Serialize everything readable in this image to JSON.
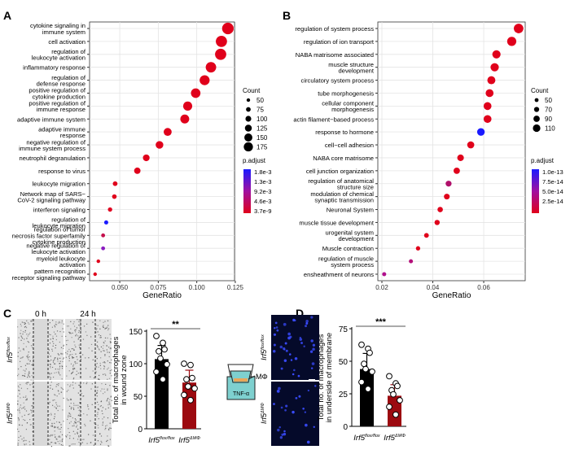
{
  "panel_labels": {
    "a": "A",
    "b": "B",
    "c": "C",
    "d": "D"
  },
  "chart_data": [
    {
      "type": "scatter",
      "panel": "A",
      "xlabel": "GeneRatio",
      "xlim": [
        0.0304,
        0.1245
      ],
      "xticks": [
        "0.050",
        "0.075",
        "0.100",
        "0.125"
      ],
      "xtick_values": [
        0.05,
        0.075,
        0.1,
        0.125
      ],
      "grid": true,
      "terms": [
        "cytokine signaling in\nimmune system",
        "cell activation",
        "regulation of\nleukocyte activation",
        "inflammatory response",
        "regulation of\ndefense response",
        "positive regulation of\ncytokine production",
        "positive regulation of\nimmune response",
        "adaptive immune system",
        "adaptive immune\nresponse",
        "negative regulation of\nimmune system process",
        "neutrophil degranulation",
        "response to virus",
        "leukocyte migration",
        "Network map of SARS−\nCoV-2 signaling pathway",
        "interferon signaling",
        "regulation of\nleukocyte migration",
        "regulation of tumor\nnecrosis factor superfamily\ncytokine production",
        "negative regulation of\nleukocyte activation",
        "myeloid leukocyte\nactivation",
        "pattern recognition\nreceptor signaling pathway"
      ],
      "gene_ratio": [
        0.1202,
        0.116,
        0.1155,
        0.1092,
        0.1051,
        0.0993,
        0.0941,
        0.0922,
        0.0811,
        0.0758,
        0.0672,
        0.0614,
        0.047,
        0.0465,
        0.0437,
        0.0412,
        0.0392,
        0.0392,
        0.0361,
        0.034
      ],
      "count": [
        178,
        172,
        172,
        160,
        152,
        145,
        138,
        135,
        120,
        115,
        100,
        95,
        68,
        66,
        63,
        58,
        55,
        55,
        50,
        46
      ],
      "colors": [
        "#e0001b",
        "#e0001b",
        "#e0001b",
        "#e0001b",
        "#e0001b",
        "#e0001b",
        "#e0001b",
        "#e0001b",
        "#e0001b",
        "#e0001b",
        "#e0001b",
        "#e0001b",
        "#e0001b",
        "#e0001b",
        "#e00220",
        "#1a1aff",
        "#c4104c",
        "#8a1cc0",
        "#e0001b",
        "#e0001b"
      ],
      "size_legend": {
        "title": "Count",
        "values": [
          50,
          75,
          100,
          125,
          150,
          175
        ]
      },
      "color_legend": {
        "title": "p.adjust",
        "labels": [
          "1.8e-3",
          "1.3e-3",
          "9.2e-3",
          "4.6e-3",
          "3.7e-9"
        ],
        "low": "#e0001b",
        "high": "#1a1aff"
      }
    },
    {
      "type": "scatter",
      "panel": "B",
      "xlabel": "GeneRatio",
      "xlim": [
        0.0184,
        0.0763
      ],
      "xticks": [
        "0.02",
        "0.04",
        "0.06"
      ],
      "xtick_values": [
        0.02,
        0.04,
        0.06
      ],
      "grid": true,
      "terms": [
        "regulation of system process",
        "regulation of ion transport",
        "NABA matrisome associated",
        "muscle structure\ndevelopment",
        "circulatory system process",
        "tube morphogenesis",
        "cellular component\nmorphogenesis",
        "actin filament−based process",
        "response to hormone",
        "cell−cell adhesion",
        "NABA core matrisome",
        "cell junction organization",
        "regulation of anatomical\nstructure size",
        "modulation of chemical\nsynaptic transmission",
        "Neuronal System",
        "muscle tissue development",
        "urogenital system\ndevelopment",
        "Muscle contraction",
        "regulation of muscle\nsystem process",
        "ensheathment of neurons"
      ],
      "gene_ratio": [
        0.0737,
        0.071,
        0.065,
        0.0643,
        0.063,
        0.0623,
        0.0615,
        0.0615,
        0.0589,
        0.0549,
        0.0509,
        0.0494,
        0.0462,
        0.0455,
        0.0429,
        0.0417,
        0.0375,
        0.0342,
        0.0314,
        0.0209
      ],
      "count": [
        115,
        110,
        100,
        100,
        97,
        95,
        95,
        95,
        92,
        86,
        80,
        77,
        72,
        70,
        66,
        64,
        58,
        53,
        48,
        30
      ],
      "colors": [
        "#e0001b",
        "#e0001b",
        "#e0001b",
        "#e0001b",
        "#e0001b",
        "#e0001b",
        "#e0001b",
        "#e0001b",
        "#1a1aff",
        "#e0001b",
        "#e0001b",
        "#e0001b",
        "#b0106a",
        "#e0001b",
        "#e0001b",
        "#e0001b",
        "#e0001b",
        "#e0001b",
        "#b4107a",
        "#b0108c"
      ],
      "size_legend": {
        "title": "Count",
        "values": [
          50,
          70,
          90,
          110
        ]
      },
      "color_legend": {
        "title": "p.adjust",
        "labels": [
          "1.0e-13",
          "7.5e-14",
          "5.0e-14",
          "2.5e-14"
        ],
        "low": "#e0001b",
        "high": "#1a1aff"
      }
    },
    {
      "type": "bar",
      "panel": "C",
      "ylabel": "Total no. of macrophages\nin wound zone",
      "ylim": [
        0,
        150
      ],
      "yticks": [
        0,
        50,
        100,
        150
      ],
      "categories": [
        "Irf5",
        "Irf5"
      ],
      "category_sup": [
        "flox/flox",
        "ΔMΦ"
      ],
      "values": [
        107,
        71
      ],
      "error_upper": [
        128,
        90
      ],
      "bar_colors": [
        "#000000",
        "#9c0a10"
      ],
      "points": [
        [
          142.5,
          132,
          122,
          119,
          108,
          99,
          87.5,
          76
        ],
        [
          100,
          98,
          78,
          76,
          65,
          62,
          52,
          44
        ]
      ],
      "significance": "**"
    },
    {
      "type": "bar",
      "panel": "D",
      "ylabel": "Total no. of macrophages\nin underside of membrane",
      "ylim": [
        0,
        75
      ],
      "yticks": [
        0,
        25,
        50,
        75
      ],
      "categories": [
        "Irf5",
        "Irf5"
      ],
      "category_sup": [
        "flox/flox",
        "ΔMΦ"
      ],
      "values": [
        44,
        23.5
      ],
      "error_upper": [
        56,
        32
      ],
      "bar_colors": [
        "#000000",
        "#9c0a10"
      ],
      "points": [
        [
          62.7,
          59.6,
          56.5,
          48,
          44,
          42,
          34,
          28.7
        ],
        [
          38.5,
          33,
          31,
          27.7,
          24.6,
          20,
          15,
          9
        ]
      ],
      "significance": "***"
    }
  ],
  "panel_c": {
    "time_labels": [
      "0 h",
      "24 h"
    ],
    "row_labels": [
      "Irf5",
      "Irf5"
    ],
    "row_sups": [
      "flox/flox",
      "ΔMΦ"
    ]
  },
  "panel_d": {
    "schematic_cell_label": "MΦ",
    "schematic_medium_label": "TNF-α",
    "row_labels": [
      "Irf5",
      "Irf5"
    ],
    "row_sups": [
      "flox/flox",
      "ΔMΦ"
    ]
  }
}
